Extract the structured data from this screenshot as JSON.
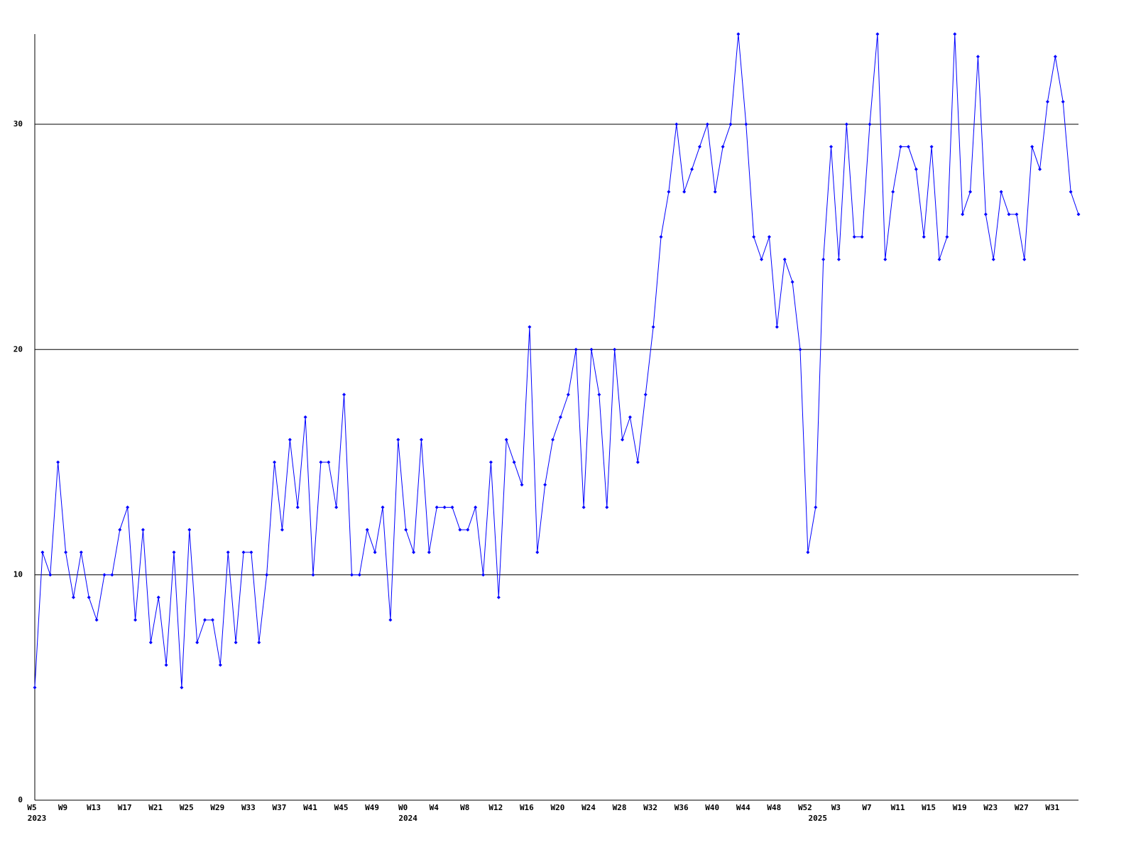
{
  "chart_data": {
    "type": "line",
    "color": "#0000ff",
    "grid": true,
    "ylim": [
      0,
      34
    ],
    "yticks": [
      0,
      10,
      20,
      30
    ],
    "categories": [
      "W5",
      null,
      null,
      null,
      "W9",
      null,
      null,
      null,
      "W13",
      null,
      null,
      null,
      "W17",
      null,
      null,
      null,
      "W21",
      null,
      null,
      null,
      "W25",
      null,
      null,
      null,
      "W29",
      null,
      null,
      null,
      "W33",
      null,
      null,
      null,
      "W37",
      null,
      null,
      null,
      "W41",
      null,
      null,
      null,
      "W45",
      null,
      null,
      null,
      "W49",
      null,
      null,
      null,
      "W0",
      null,
      null,
      null,
      "W4",
      null,
      null,
      null,
      "W8",
      null,
      null,
      null,
      "W12",
      null,
      null,
      null,
      "W16",
      null,
      null,
      null,
      "W20",
      null,
      null,
      null,
      "W24",
      null,
      null,
      null,
      "W28",
      null,
      null,
      null,
      "W32",
      null,
      null,
      null,
      "W36",
      null,
      null,
      null,
      "W40",
      null,
      null,
      null,
      "W44",
      null,
      null,
      null,
      "W48",
      null,
      null,
      null,
      "W52",
      null,
      null,
      null,
      "W3",
      null,
      null,
      null,
      "W7",
      null,
      null,
      null,
      "W11",
      null,
      null,
      null,
      "W15",
      null,
      null,
      null,
      "W19",
      null,
      null,
      null,
      "W23",
      null,
      null,
      null,
      "W27",
      null,
      null,
      null,
      "W31",
      null,
      null,
      null
    ],
    "category_years": [
      "2023",
      null,
      null,
      null,
      null,
      null,
      null,
      null,
      null,
      null,
      null,
      null,
      null,
      null,
      null,
      null,
      null,
      null,
      null,
      null,
      null,
      null,
      null,
      null,
      null,
      null,
      null,
      null,
      null,
      null,
      null,
      null,
      null,
      null,
      null,
      null,
      null,
      null,
      null,
      null,
      null,
      null,
      null,
      null,
      null,
      null,
      null,
      null,
      "2024",
      null,
      null,
      null,
      null,
      null,
      null,
      null,
      null,
      null,
      null,
      null,
      null,
      null,
      null,
      null,
      null,
      null,
      null,
      null,
      null,
      null,
      null,
      null,
      null,
      null,
      null,
      null,
      null,
      null,
      null,
      null,
      null,
      null,
      null,
      null,
      null,
      null,
      null,
      null,
      null,
      null,
      null,
      null,
      null,
      null,
      null,
      null,
      null,
      null,
      null,
      null,
      null,
      "2025",
      null,
      null,
      null,
      null,
      null,
      null,
      null,
      null,
      null,
      null,
      null,
      null,
      null,
      null,
      null,
      null,
      null,
      null,
      null,
      null,
      null,
      null,
      null,
      null,
      null,
      null,
      null,
      null,
      null,
      null,
      null,
      null,
      null,
      null
    ],
    "values": [
      5,
      11,
      10,
      15,
      11,
      9,
      11,
      9,
      8,
      10,
      10,
      12,
      13,
      8,
      12,
      7,
      9,
      6,
      11,
      5,
      12,
      7,
      8,
      8,
      6,
      11,
      7,
      11,
      11,
      7,
      10,
      15,
      12,
      16,
      13,
      17,
      10,
      15,
      15,
      13,
      18,
      10,
      10,
      12,
      11,
      13,
      8,
      16,
      12,
      11,
      16,
      11,
      13,
      13,
      13,
      12,
      12,
      13,
      10,
      15,
      9,
      16,
      15,
      14,
      21,
      11,
      14,
      16,
      17,
      18,
      20,
      13,
      20,
      18,
      13,
      20,
      16,
      17,
      15,
      18,
      21,
      25,
      27,
      30,
      27,
      28,
      29,
      30,
      27,
      29,
      30,
      34,
      30,
      25,
      24,
      25,
      21,
      24,
      23,
      20,
      11,
      13,
      24,
      29,
      24,
      30,
      25,
      25,
      30,
      34,
      24,
      27,
      29,
      29,
      28,
      25,
      29,
      24,
      25,
      34,
      26,
      27,
      33,
      26,
      24,
      27,
      26,
      26,
      24,
      29,
      28,
      31,
      33,
      31,
      27,
      26
    ]
  }
}
